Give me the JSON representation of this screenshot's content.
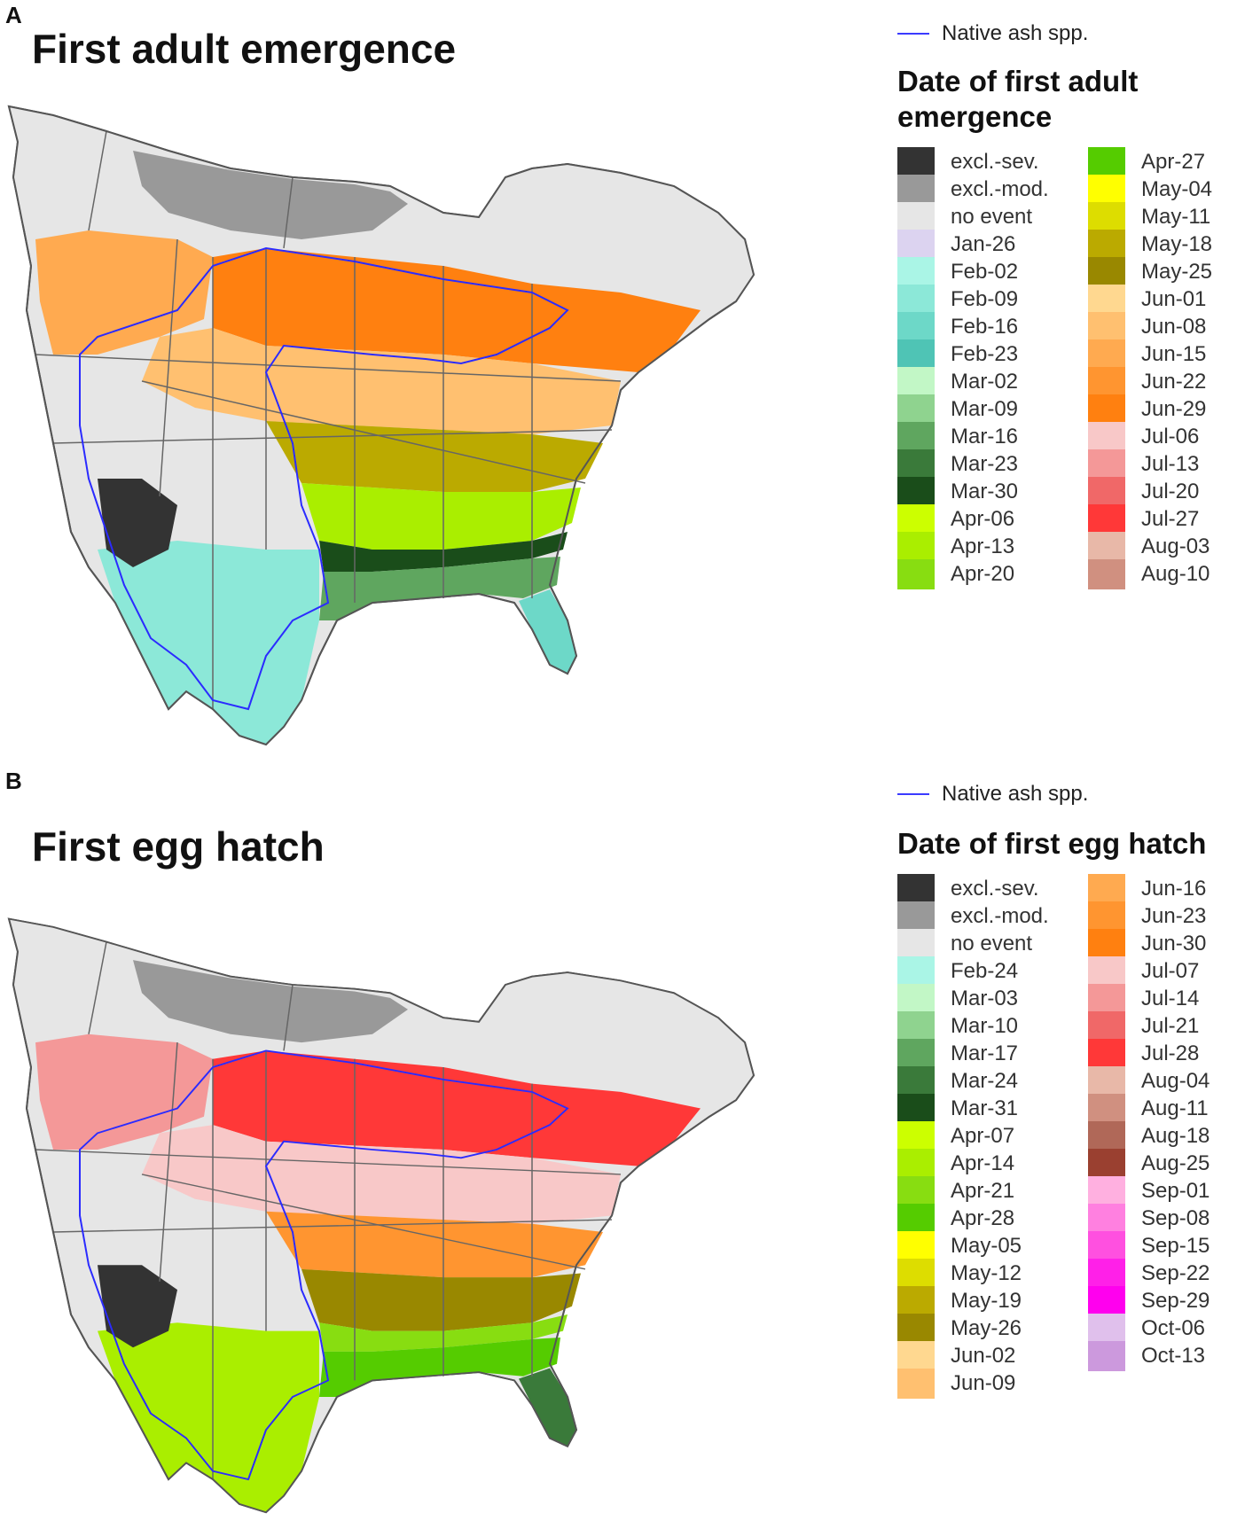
{
  "panel_a": {
    "letter": "A",
    "title": "First adult emergence",
    "reference_label": "Native ash spp.",
    "legend_title": "Date of first adult emergence",
    "legend_rows_per_column": 16,
    "legend": [
      {
        "label": "excl.-sev.",
        "color": "#333333"
      },
      {
        "label": "excl.-mod.",
        "color": "#999999"
      },
      {
        "label": "no event",
        "color": "#e6e6e6"
      },
      {
        "label": "Jan-26",
        "color": "#dcd3f0"
      },
      {
        "label": "Feb-02",
        "color": "#aaf5e6"
      },
      {
        "label": "Feb-09",
        "color": "#8ce8d8"
      },
      {
        "label": "Feb-16",
        "color": "#6dd8c8"
      },
      {
        "label": "Feb-23",
        "color": "#4fc4b5"
      },
      {
        "label": "Mar-02",
        "color": "#c2f7c6"
      },
      {
        "label": "Mar-09",
        "color": "#8fd38f"
      },
      {
        "label": "Mar-16",
        "color": "#5fa65f"
      },
      {
        "label": "Mar-23",
        "color": "#3a7a3a"
      },
      {
        "label": "Mar-30",
        "color": "#1a4d1a"
      },
      {
        "label": "Apr-06",
        "color": "#ccff00"
      },
      {
        "label": "Apr-13",
        "color": "#aaee00"
      },
      {
        "label": "Apr-20",
        "color": "#88dd11"
      },
      {
        "label": "Apr-27",
        "color": "#55cc00"
      },
      {
        "label": "May-04",
        "color": "#ffff00"
      },
      {
        "label": "May-11",
        "color": "#dddd00"
      },
      {
        "label": "May-18",
        "color": "#bbaa00"
      },
      {
        "label": "May-25",
        "color": "#998800"
      },
      {
        "label": "Jun-01",
        "color": "#ffd890"
      },
      {
        "label": "Jun-08",
        "color": "#ffc070"
      },
      {
        "label": "Jun-15",
        "color": "#ffaa50"
      },
      {
        "label": "Jun-22",
        "color": "#ff9530"
      },
      {
        "label": "Jun-29",
        "color": "#ff8010"
      },
      {
        "label": "Jul-06",
        "color": "#f8c8c8"
      },
      {
        "label": "Jul-13",
        "color": "#f49898"
      },
      {
        "label": "Jul-20",
        "color": "#f06868"
      },
      {
        "label": "Jul-27",
        "color": "#ff3838"
      },
      {
        "label": "Aug-03",
        "color": "#e8b8a8"
      },
      {
        "label": "Aug-10",
        "color": "#d09080"
      }
    ],
    "map_zones": [
      {
        "band": "far-north",
        "color": "#e6e6e6"
      },
      {
        "band": "north-arctic",
        "color": "#999999"
      },
      {
        "band": "prairie-north",
        "color": "#ffaa50"
      },
      {
        "band": "canada-south",
        "color": "#ff8010"
      },
      {
        "band": "north-plains",
        "color": "#ffc070"
      },
      {
        "band": "central",
        "color": "#bbaa00"
      },
      {
        "band": "central-south",
        "color": "#aaee00"
      },
      {
        "band": "gulf-edge",
        "color": "#1a4d1a"
      },
      {
        "band": "gulf-coast",
        "color": "#5fa65f"
      },
      {
        "band": "florida",
        "color": "#6dd8c8"
      },
      {
        "band": "southwest",
        "color": "#8ce8d8"
      },
      {
        "band": "mountains",
        "color": "#333333"
      }
    ]
  },
  "panel_b": {
    "letter": "B",
    "title": "First egg hatch",
    "reference_label": "Native ash spp.",
    "legend_title": "Date of first egg hatch",
    "legend_rows_per_column": 19,
    "legend": [
      {
        "label": "excl.-sev.",
        "color": "#333333"
      },
      {
        "label": "excl.-mod.",
        "color": "#999999"
      },
      {
        "label": "no event",
        "color": "#e6e6e6"
      },
      {
        "label": "Feb-24",
        "color": "#aaf5e6"
      },
      {
        "label": "Mar-03",
        "color": "#c2f7c6"
      },
      {
        "label": "Mar-10",
        "color": "#8fd38f"
      },
      {
        "label": "Mar-17",
        "color": "#5fa65f"
      },
      {
        "label": "Mar-24",
        "color": "#3a7a3a"
      },
      {
        "label": "Mar-31",
        "color": "#1a4d1a"
      },
      {
        "label": "Apr-07",
        "color": "#ccff00"
      },
      {
        "label": "Apr-14",
        "color": "#aaee00"
      },
      {
        "label": "Apr-21",
        "color": "#88dd11"
      },
      {
        "label": "Apr-28",
        "color": "#55cc00"
      },
      {
        "label": "May-05",
        "color": "#ffff00"
      },
      {
        "label": "May-12",
        "color": "#dddd00"
      },
      {
        "label": "May-19",
        "color": "#bbaa00"
      },
      {
        "label": "May-26",
        "color": "#998800"
      },
      {
        "label": "Jun-02",
        "color": "#ffd890"
      },
      {
        "label": "Jun-09",
        "color": "#ffc070"
      },
      {
        "label": "Jun-16",
        "color": "#ffaa50"
      },
      {
        "label": "Jun-23",
        "color": "#ff9530"
      },
      {
        "label": "Jun-30",
        "color": "#ff8010"
      },
      {
        "label": "Jul-07",
        "color": "#f8c8c8"
      },
      {
        "label": "Jul-14",
        "color": "#f49898"
      },
      {
        "label": "Jul-21",
        "color": "#f06868"
      },
      {
        "label": "Jul-28",
        "color": "#ff3838"
      },
      {
        "label": "Aug-04",
        "color": "#e8b8a8"
      },
      {
        "label": "Aug-11",
        "color": "#d09080"
      },
      {
        "label": "Aug-18",
        "color": "#b06858"
      },
      {
        "label": "Aug-25",
        "color": "#9a4030"
      },
      {
        "label": "Sep-01",
        "color": "#ffb0e0"
      },
      {
        "label": "Sep-08",
        "color": "#ff80e0"
      },
      {
        "label": "Sep-15",
        "color": "#ff50e0"
      },
      {
        "label": "Sep-22",
        "color": "#ff20e8"
      },
      {
        "label": "Sep-29",
        "color": "#ff00ee"
      },
      {
        "label": "Oct-06",
        "color": "#e0c0ec"
      },
      {
        "label": "Oct-13",
        "color": "#cc99dd"
      }
    ],
    "map_zones": [
      {
        "band": "far-north",
        "color": "#e6e6e6"
      },
      {
        "band": "north-arctic",
        "color": "#999999"
      },
      {
        "band": "prairie-north",
        "color": "#f49898"
      },
      {
        "band": "canada-south",
        "color": "#ff3838"
      },
      {
        "band": "north-plains",
        "color": "#f8c8c8"
      },
      {
        "band": "central",
        "color": "#ff9530"
      },
      {
        "band": "central-south",
        "color": "#998800"
      },
      {
        "band": "gulf-edge",
        "color": "#88dd11"
      },
      {
        "band": "gulf-coast",
        "color": "#55cc00"
      },
      {
        "band": "florida",
        "color": "#3a7a3a"
      },
      {
        "band": "southwest",
        "color": "#aaee00"
      },
      {
        "band": "mountains",
        "color": "#333333"
      }
    ]
  }
}
